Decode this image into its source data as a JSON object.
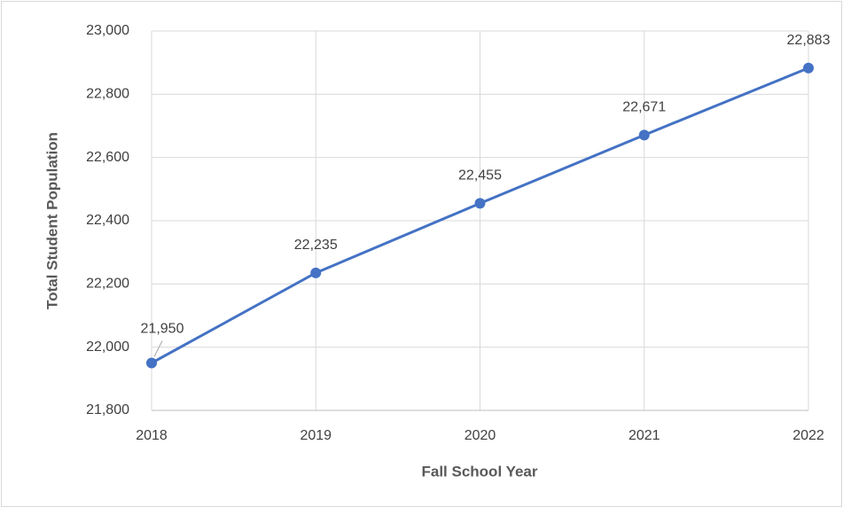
{
  "chart_data": {
    "type": "line",
    "x_label": "Fall School Year",
    "y_label": "Total Student Population",
    "categories": [
      "2018",
      "2019",
      "2020",
      "2021",
      "2022"
    ],
    "series": [
      {
        "name": "Total Student Population",
        "color": "#4472c4",
        "values": [
          21950,
          22235,
          22455,
          22671,
          22883
        ],
        "value_labels": [
          "21,950",
          "22,235",
          "22,455",
          "22,671",
          "22,883"
        ]
      }
    ],
    "ylim": [
      21800,
      23000
    ],
    "yticks": [
      {
        "value": 21800,
        "label": "21,800"
      },
      {
        "value": 22000,
        "label": "22,000"
      },
      {
        "value": 22200,
        "label": "22,200"
      },
      {
        "value": 22400,
        "label": "22,400"
      },
      {
        "value": 22600,
        "label": "22,600"
      },
      {
        "value": 22800,
        "label": "22,800"
      },
      {
        "value": 23000,
        "label": "23,000"
      }
    ],
    "grid": true
  }
}
